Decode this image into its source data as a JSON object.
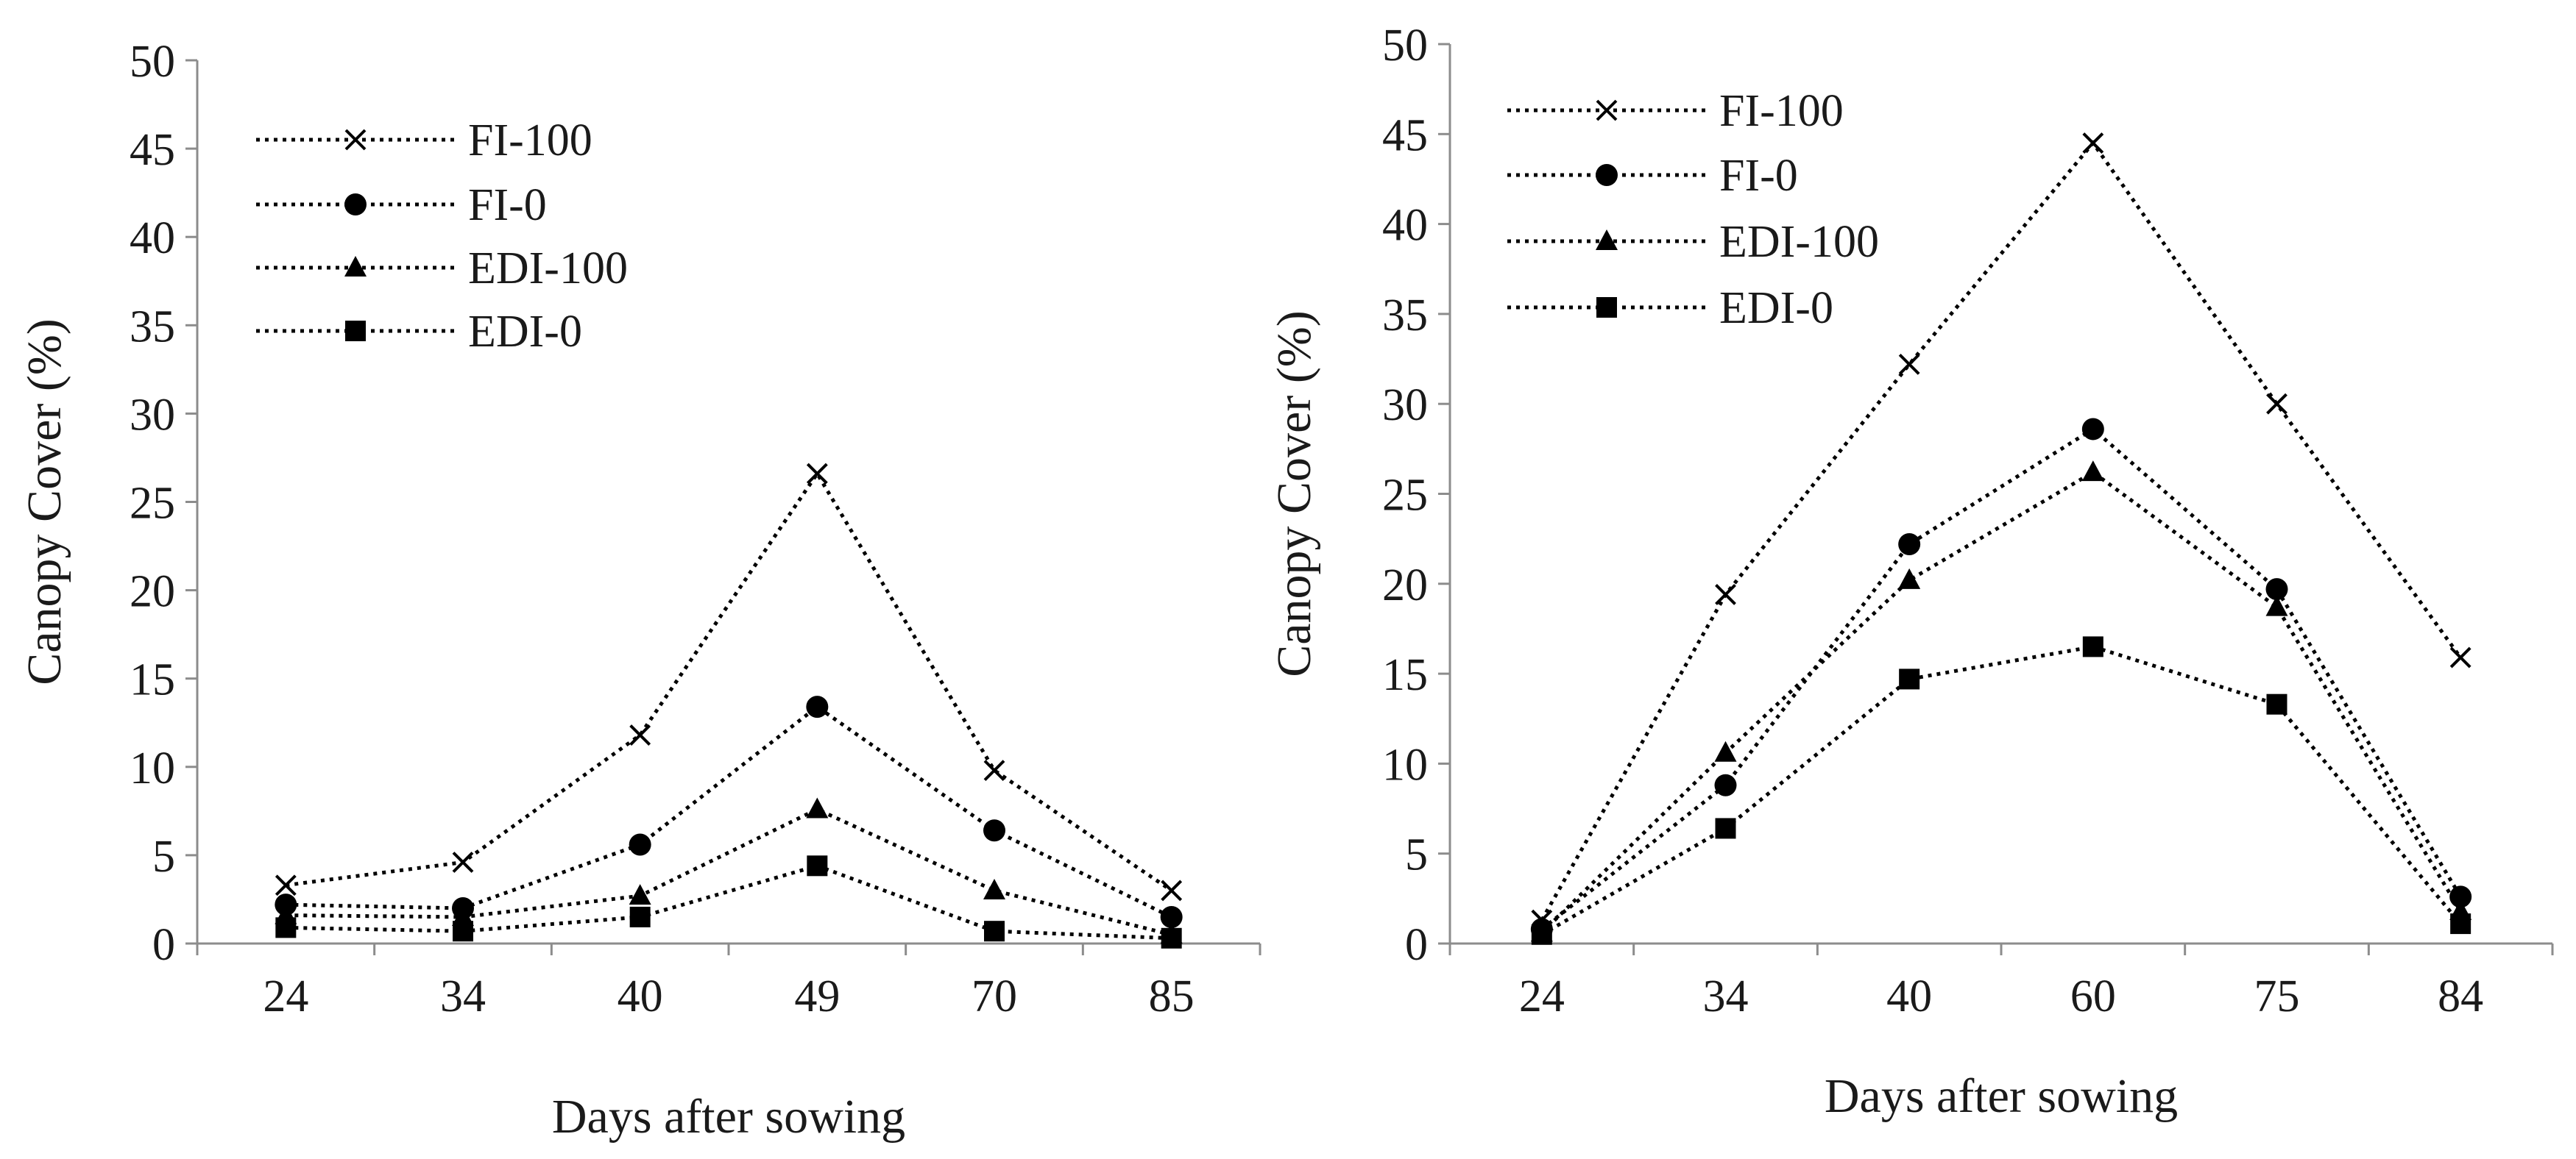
{
  "chart_data": [
    {
      "type": "line",
      "title": "",
      "xlabel": "Days after sowing",
      "ylabel": "Canopy Cover (%)",
      "categories": [
        "24",
        "34",
        "40",
        "49",
        "70",
        "85"
      ],
      "ylim": [
        0,
        50
      ],
      "yticks": [
        0,
        5,
        10,
        15,
        20,
        25,
        30,
        35,
        40,
        45,
        50
      ],
      "grid": false,
      "legend_position": "top-left",
      "series": [
        {
          "name": "FI-100",
          "marker": "x",
          "values": [
            3.3,
            4.6,
            11.8,
            26.6,
            9.8,
            3.0
          ]
        },
        {
          "name": "FI-0",
          "marker": "circle",
          "values": [
            2.2,
            2.0,
            5.6,
            13.4,
            6.4,
            1.5
          ]
        },
        {
          "name": "EDI-100",
          "marker": "triangle",
          "values": [
            1.6,
            1.5,
            2.7,
            7.6,
            3.0,
            0.5
          ]
        },
        {
          "name": "EDI-0",
          "marker": "square",
          "values": [
            0.9,
            0.7,
            1.5,
            4.4,
            0.7,
            0.3
          ]
        }
      ]
    },
    {
      "type": "line",
      "title": "",
      "xlabel": "Days after sowing",
      "ylabel": "Canopy Cover (%)",
      "categories": [
        "24",
        "34",
        "40",
        "60",
        "75",
        "84"
      ],
      "ylim": [
        0,
        50
      ],
      "yticks": [
        0,
        5,
        10,
        15,
        20,
        25,
        30,
        35,
        40,
        45,
        50
      ],
      "grid": false,
      "legend_position": "top-left",
      "series": [
        {
          "name": "FI-100",
          "marker": "x",
          "values": [
            1.3,
            19.4,
            32.2,
            44.5,
            30.0,
            15.9
          ]
        },
        {
          "name": "FI-0",
          "marker": "circle",
          "values": [
            0.8,
            8.8,
            22.2,
            28.6,
            19.7,
            2.6
          ]
        },
        {
          "name": "EDI-100",
          "marker": "triangle",
          "values": [
            0.6,
            10.6,
            20.2,
            26.2,
            18.7,
            1.8
          ]
        },
        {
          "name": "EDI-0",
          "marker": "square",
          "values": [
            0.5,
            6.4,
            14.7,
            16.5,
            13.3,
            1.1
          ]
        }
      ]
    }
  ]
}
